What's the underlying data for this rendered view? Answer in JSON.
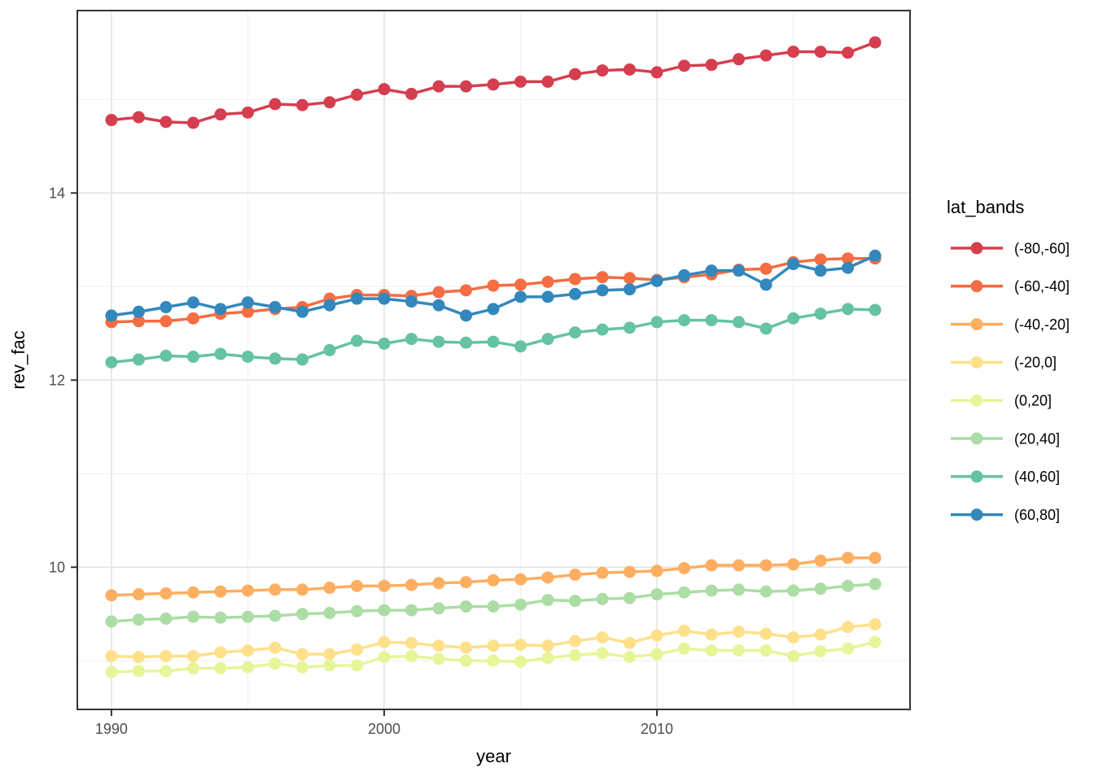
{
  "chart_data": {
    "type": "line",
    "title": "",
    "xlabel": "year",
    "ylabel": "rev_fac",
    "legend_title": "lat_bands",
    "legend_position": "right",
    "grid": true,
    "x": [
      1990,
      1991,
      1992,
      1993,
      1994,
      1995,
      1996,
      1997,
      1998,
      1999,
      2000,
      2001,
      2002,
      2003,
      2004,
      2005,
      2006,
      2007,
      2008,
      2009,
      2010,
      2011,
      2012,
      2013,
      2014,
      2015,
      2016,
      2017,
      2018
    ],
    "x_ticks": [
      1990,
      2000,
      2010
    ],
    "x_minor_ticks": [
      1995,
      2005,
      2015
    ],
    "y_ticks": [
      10,
      12,
      14
    ],
    "y_minor_ticks": [
      9,
      11,
      13,
      15
    ],
    "xlim": [
      1988.75,
      2019.28
    ],
    "ylim": [
      8.48,
      15.95
    ],
    "series": [
      {
        "name": "(-80,-60]",
        "color": "#d53e4f",
        "values": [
          14.78,
          14.81,
          14.76,
          14.75,
          14.84,
          14.86,
          14.95,
          14.94,
          14.97,
          15.05,
          15.11,
          15.06,
          15.14,
          15.14,
          15.16,
          15.19,
          15.19,
          15.27,
          15.31,
          15.32,
          15.29,
          15.36,
          15.37,
          15.43,
          15.47,
          15.51,
          15.51,
          15.5,
          15.61
        ]
      },
      {
        "name": "(-60,-40]",
        "color": "#f46d43",
        "values": [
          12.62,
          12.63,
          12.63,
          12.66,
          12.71,
          12.73,
          12.76,
          12.78,
          12.87,
          12.91,
          12.91,
          12.9,
          12.94,
          12.96,
          13.01,
          13.02,
          13.05,
          13.08,
          13.1,
          13.09,
          13.07,
          13.1,
          13.13,
          13.18,
          13.19,
          13.26,
          13.29,
          13.3,
          13.3
        ]
      },
      {
        "name": "(-40,-20]",
        "color": "#fdae61",
        "values": [
          9.7,
          9.71,
          9.72,
          9.73,
          9.74,
          9.75,
          9.76,
          9.76,
          9.78,
          9.8,
          9.8,
          9.81,
          9.83,
          9.84,
          9.86,
          9.87,
          9.89,
          9.92,
          9.94,
          9.95,
          9.96,
          9.99,
          10.02,
          10.02,
          10.02,
          10.03,
          10.07,
          10.1,
          10.1
        ]
      },
      {
        "name": "(-20,0]",
        "color": "#fee08b",
        "values": [
          9.05,
          9.04,
          9.05,
          9.05,
          9.09,
          9.11,
          9.14,
          9.07,
          9.07,
          9.12,
          9.2,
          9.19,
          9.16,
          9.14,
          9.16,
          9.17,
          9.16,
          9.21,
          9.25,
          9.19,
          9.27,
          9.32,
          9.28,
          9.31,
          9.29,
          9.25,
          9.28,
          9.36,
          9.39
        ]
      },
      {
        "name": "(0,20]",
        "color": "#e6f598",
        "values": [
          8.88,
          8.89,
          8.89,
          8.92,
          8.92,
          8.93,
          8.97,
          8.93,
          8.95,
          8.95,
          9.04,
          9.05,
          9.02,
          9.0,
          9.0,
          8.99,
          9.03,
          9.06,
          9.08,
          9.04,
          9.07,
          9.13,
          9.11,
          9.11,
          9.11,
          9.05,
          9.1,
          9.13,
          9.2
        ]
      },
      {
        "name": "(20,40]",
        "color": "#abdda4",
        "values": [
          9.42,
          9.44,
          9.45,
          9.47,
          9.46,
          9.47,
          9.48,
          9.5,
          9.51,
          9.53,
          9.54,
          9.54,
          9.56,
          9.58,
          9.58,
          9.6,
          9.65,
          9.64,
          9.66,
          9.67,
          9.71,
          9.73,
          9.75,
          9.76,
          9.74,
          9.75,
          9.77,
          9.8,
          9.82
        ]
      },
      {
        "name": "(40,60]",
        "color": "#66c2a5",
        "values": [
          12.19,
          12.22,
          12.26,
          12.25,
          12.28,
          12.25,
          12.23,
          12.22,
          12.32,
          12.42,
          12.39,
          12.44,
          12.41,
          12.4,
          12.41,
          12.36,
          12.44,
          12.51,
          12.54,
          12.56,
          12.62,
          12.64,
          12.64,
          12.62,
          12.55,
          12.66,
          12.71,
          12.76,
          12.75
        ]
      },
      {
        "name": "(60,80]",
        "color": "#3288bd",
        "values": [
          12.69,
          12.73,
          12.78,
          12.83,
          12.76,
          12.83,
          12.78,
          12.73,
          12.8,
          12.87,
          12.87,
          12.84,
          12.8,
          12.69,
          12.76,
          12.89,
          12.89,
          12.92,
          12.96,
          12.97,
          13.06,
          13.12,
          13.17,
          13.17,
          13.02,
          13.24,
          13.17,
          13.2,
          13.33
        ]
      }
    ],
    "style": {
      "panel_border_color": "#333333",
      "major_grid_color": "#e4e4e4",
      "minor_grid_color": "#f1f1f1",
      "tick_color": "#333333",
      "tick_label_color": "#4d4d4d",
      "point_radius": 7.5,
      "line_width": 3.5
    }
  }
}
